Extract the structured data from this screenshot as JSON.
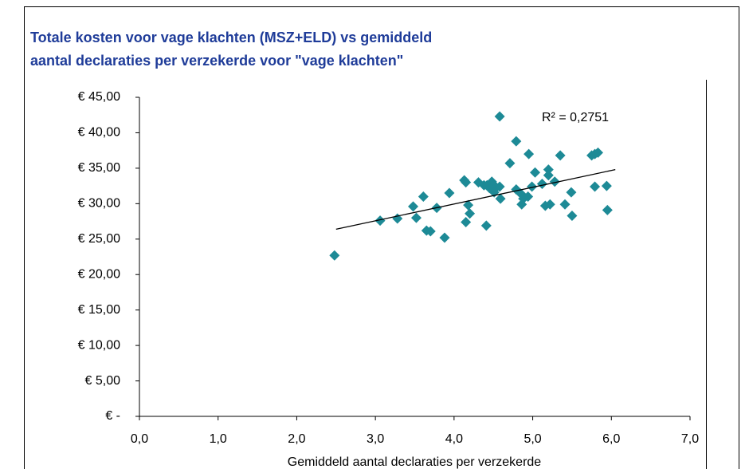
{
  "chart_data": {
    "type": "scatter",
    "title": [
      "Totale kosten voor vage klachten (MSZ+ELD) vs gemiddeld",
      "aantal declaraties per verzekerde voor \"vage klachten\""
    ],
    "x_label": "Gemiddeld aantal declaraties per verzekerde",
    "annotation": "R² = 0,2751",
    "color": "#1d8a96",
    "trendline_color": "#000000",
    "x": [
      2.48,
      3.06,
      3.28,
      3.48,
      3.52,
      3.61,
      3.65,
      3.7,
      3.78,
      3.88,
      3.94,
      4.13,
      4.15,
      4.15,
      4.18,
      4.2,
      4.31,
      4.38,
      4.42,
      4.45,
      4.41,
      4.48,
      4.51,
      4.51,
      4.58,
      4.51,
      4.58,
      4.59,
      4.71,
      4.79,
      4.79,
      4.85,
      4.86,
      4.88,
      4.94,
      4.95,
      4.99,
      5.03,
      5.12,
      5.16,
      5.2,
      5.2,
      5.22,
      5.28,
      5.35,
      5.41,
      5.49,
      5.5,
      5.75,
      5.79,
      5.83,
      5.79,
      5.94,
      5.95
    ],
    "values": [
      22.7,
      27.6,
      27.9,
      29.6,
      28.0,
      31.0,
      26.2,
      26.1,
      29.4,
      25.2,
      31.5,
      33.3,
      33.0,
      27.4,
      29.8,
      28.6,
      33.0,
      32.6,
      32.6,
      32.2,
      26.9,
      33.1,
      32.6,
      32.0,
      32.4,
      31.6,
      42.3,
      30.7,
      35.7,
      38.8,
      32.0,
      31.4,
      29.9,
      30.7,
      31.0,
      37.0,
      32.4,
      34.4,
      32.8,
      29.7,
      34.8,
      34.0,
      29.9,
      33.1,
      36.8,
      29.9,
      31.6,
      28.3,
      36.8,
      37.0,
      37.2,
      32.4,
      32.5,
      29.1
    ],
    "trendline": {
      "x": [
        2.5,
        6.05
      ],
      "values": [
        26.4,
        34.8
      ]
    },
    "xlim": [
      0,
      7
    ],
    "xticks": [
      {
        "value": 0,
        "label": "0,0"
      },
      {
        "value": 1,
        "label": "1,0"
      },
      {
        "value": 2,
        "label": "2,0"
      },
      {
        "value": 3,
        "label": "3,0"
      },
      {
        "value": 4,
        "label": "4,0"
      },
      {
        "value": 5,
        "label": "5,0"
      },
      {
        "value": 6,
        "label": "6,0"
      },
      {
        "value": 7,
        "label": "7,0"
      }
    ],
    "ylim": [
      0,
      45
    ],
    "yticks": [
      {
        "value": 0,
        "label": "€ -"
      },
      {
        "value": 5,
        "label": "€ 5,00"
      },
      {
        "value": 10,
        "label": "€ 10,00"
      },
      {
        "value": 15,
        "label": "€ 15,00"
      },
      {
        "value": 20,
        "label": "€ 20,00"
      },
      {
        "value": 25,
        "label": "€ 25,00"
      },
      {
        "value": 30,
        "label": "€ 30,00"
      },
      {
        "value": 35,
        "label": "€ 35,00"
      },
      {
        "value": 40,
        "label": "€ 40,00"
      },
      {
        "value": 45,
        "label": "€ 45,00"
      }
    ],
    "grid": false
  }
}
